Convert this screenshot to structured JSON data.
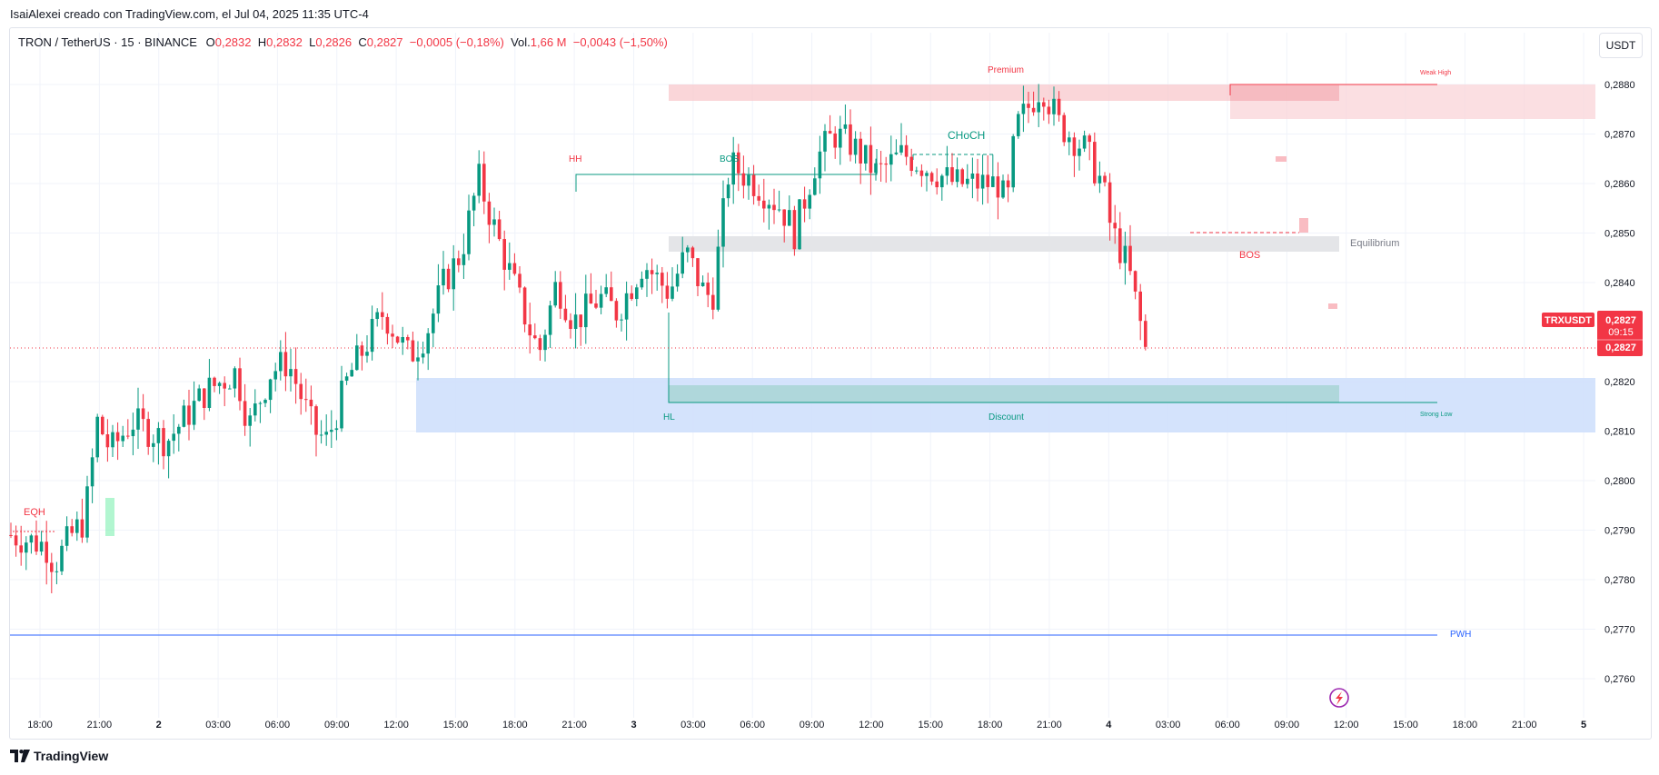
{
  "header": {
    "caption": "IsaiAlexei creado con TradingView.com, el Jul 04, 2025 11:35 UTC-4"
  },
  "legend": {
    "symbol": "TRON / TetherUS · 15 · BINANCE",
    "o_label": "O",
    "o_value": "0,2832",
    "h_label": "H",
    "h_value": "0,2832",
    "l_label": "L",
    "l_value": "0,2826",
    "c_label": "C",
    "c_value": "0,2827",
    "change": "−0,0005 (−0,18%)",
    "vol_label": "Vol.",
    "vol_value": "1,66 M",
    "vol_change": "−0,0043 (−1,50%)"
  },
  "toolbar": {
    "currency": "USDT"
  },
  "price_tag": {
    "symbol": "TRXUSDT",
    "price": "0,2827",
    "countdown": "09:15",
    "price2": "0,2827"
  },
  "annotations": {
    "eqh": "EQH",
    "hh": "HH",
    "bos1": "BOS",
    "choch": "CHoCH",
    "premium": "Premium",
    "weak_high": "Weak High",
    "equilibrium": "Equilibrium",
    "bos2": "BOS",
    "hl": "HL",
    "discount": "Discount",
    "strong_low": "Strong Low",
    "pwh": "PWH"
  },
  "footer": {
    "brand": "TradingView"
  },
  "colors": {
    "up": "#089981",
    "down": "#f23645",
    "grid": "#f0f3fa",
    "pwh": "#2962ff"
  },
  "chart_data": {
    "type": "candlestick",
    "symbol": "TRXUSDT",
    "interval": "15",
    "y_ticks": [
      "0,2880",
      "0,2870",
      "0,2860",
      "0,2850",
      "0,2840",
      "0,2820",
      "0,2810",
      "0,2800",
      "0,2790",
      "0,2780",
      "0,2770",
      "0,2760"
    ],
    "y_tick_values": [
      0.288,
      0.287,
      0.286,
      0.285,
      0.284,
      0.282,
      0.281,
      0.28,
      0.279,
      0.278,
      0.277,
      0.276
    ],
    "ylim": [
      0.2752,
      0.2893
    ],
    "x_ticks": [
      "18:00",
      "21:00",
      "2",
      "03:00",
      "06:00",
      "09:00",
      "12:00",
      "15:00",
      "18:00",
      "21:00",
      "3",
      "03:00",
      "06:00",
      "09:00",
      "12:00",
      "15:00",
      "18:00",
      "21:00",
      "4",
      "03:00",
      "06:00",
      "09:00",
      "12:00",
      "15:00",
      "18:00",
      "21:00",
      "5"
    ],
    "candles_count": 240,
    "last_price": 0.2827,
    "path": [
      [
        0,
        0.2789
      ],
      [
        8,
        0.2787
      ],
      [
        10,
        0.2783
      ],
      [
        14,
        0.2789
      ],
      [
        17,
        0.2792
      ],
      [
        20,
        0.2812
      ],
      [
        23,
        0.2806
      ],
      [
        28,
        0.2812
      ],
      [
        36,
        0.2808
      ],
      [
        45,
        0.2818
      ],
      [
        52,
        0.2822
      ],
      [
        55,
        0.2811
      ],
      [
        60,
        0.2822
      ],
      [
        64,
        0.2824
      ],
      [
        70,
        0.281
      ],
      [
        73,
        0.2808
      ],
      [
        78,
        0.2821
      ],
      [
        86,
        0.2834
      ],
      [
        92,
        0.2825
      ],
      [
        96,
        0.283
      ],
      [
        100,
        0.284
      ],
      [
        104,
        0.2846
      ],
      [
        108,
        0.2861
      ],
      [
        112,
        0.285
      ],
      [
        116,
        0.284
      ],
      [
        120,
        0.283
      ],
      [
        122,
        0.2826
      ],
      [
        126,
        0.284
      ],
      [
        130,
        0.2832
      ],
      [
        136,
        0.2837
      ],
      [
        140,
        0.2834
      ],
      [
        146,
        0.2844
      ],
      [
        152,
        0.2838
      ],
      [
        156,
        0.2846
      ],
      [
        160,
        0.2838
      ],
      [
        162,
        0.2837
      ],
      [
        166,
        0.2864
      ],
      [
        172,
        0.286
      ],
      [
        178,
        0.2855
      ],
      [
        181,
        0.285
      ],
      [
        186,
        0.2865
      ],
      [
        190,
        0.287
      ],
      [
        194,
        0.2868
      ],
      [
        200,
        0.2862
      ],
      [
        206,
        0.2866
      ],
      [
        212,
        0.2863
      ],
      [
        218,
        0.286
      ],
      [
        224,
        0.286
      ],
      [
        228,
        0.286
      ],
      [
        230,
        0.2855
      ],
      [
        232,
        0.2871
      ],
      [
        236,
        0.2877
      ],
      [
        238,
        0.288
      ],
      [
        240,
        0.2876
      ],
      [
        242,
        0.2872
      ],
      [
        248,
        0.2867
      ],
      [
        252,
        0.286
      ],
      [
        254,
        0.2851
      ],
      [
        258,
        0.2843
      ],
      [
        262,
        0.2827
      ]
    ]
  }
}
